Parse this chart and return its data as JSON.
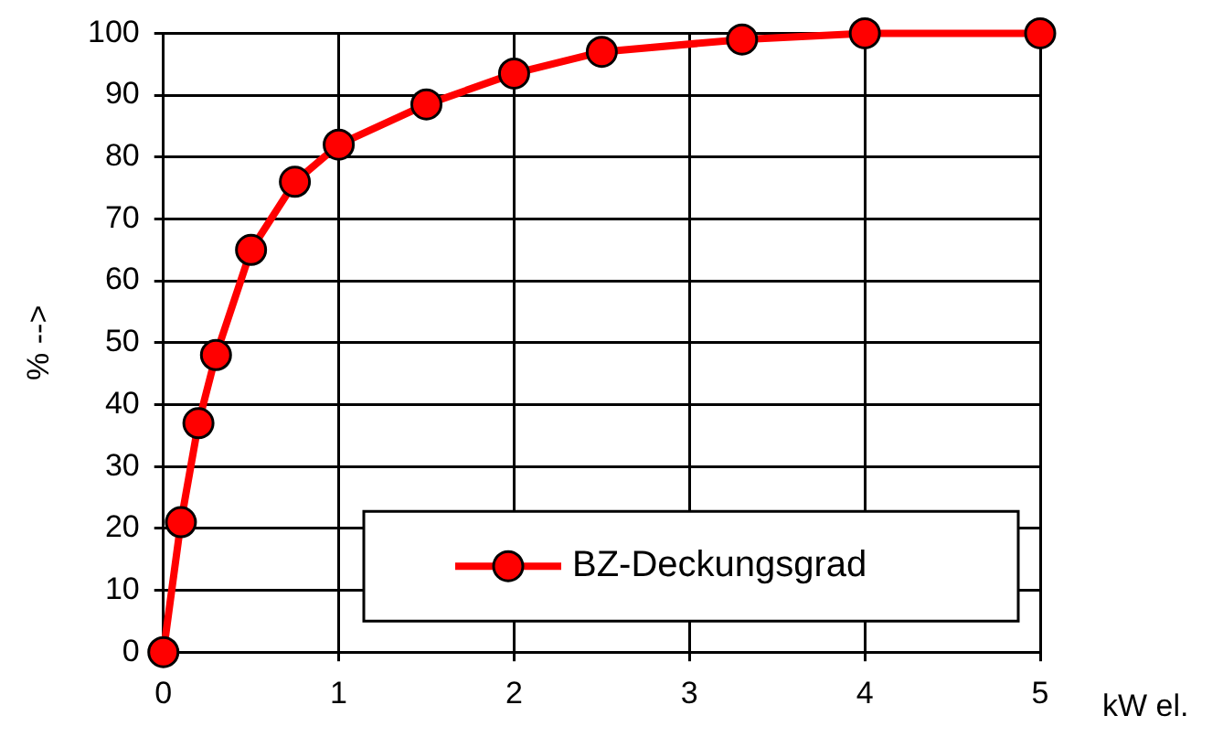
{
  "chart_data": {
    "type": "line",
    "xlabel": "kW el.",
    "ylabel": "% -->",
    "x": [
      0,
      0.1,
      0.2,
      0.3,
      0.5,
      0.75,
      1,
      1.5,
      2,
      2.5,
      3.3,
      4,
      5
    ],
    "series": [
      {
        "name": "BZ-Deckungsgrad",
        "color": "#ff0000",
        "values": [
          0,
          21,
          37,
          48,
          65,
          76,
          82,
          88.5,
          93.5,
          97,
          99,
          100,
          100
        ]
      }
    ],
    "xlim": [
      0,
      5
    ],
    "xticks": [
      0,
      1,
      2,
      3,
      4,
      5
    ],
    "ylim": [
      0,
      100
    ],
    "yticks": [
      0,
      10,
      20,
      30,
      40,
      50,
      60,
      70,
      80,
      90,
      100
    ],
    "grid": true,
    "legend": "bottom right",
    "marker": "circle",
    "line_style": "solid"
  }
}
